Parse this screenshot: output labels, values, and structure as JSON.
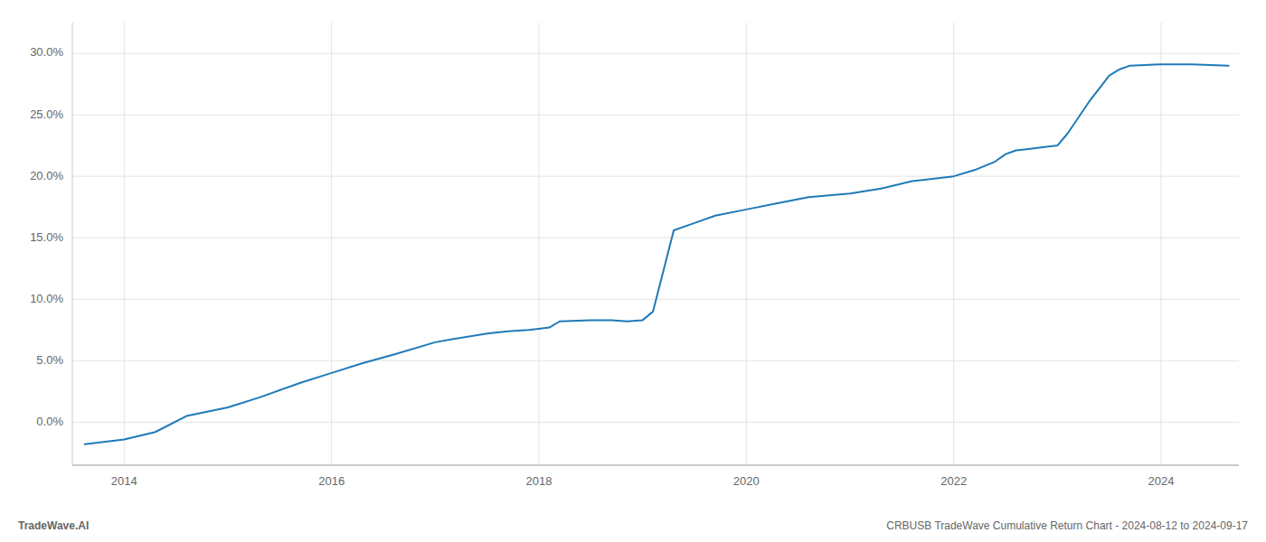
{
  "chart_data": {
    "type": "line",
    "x": [
      2013.62,
      2014.0,
      2014.3,
      2014.6,
      2015.0,
      2015.3,
      2015.7,
      2016.0,
      2016.3,
      2016.6,
      2017.0,
      2017.2,
      2017.5,
      2017.7,
      2017.9,
      2018.0,
      2018.1,
      2018.2,
      2018.5,
      2018.7,
      2018.85,
      2019.0,
      2019.1,
      2019.3,
      2019.5,
      2019.7,
      2020.0,
      2020.3,
      2020.6,
      2021.0,
      2021.3,
      2021.6,
      2022.0,
      2022.2,
      2022.4,
      2022.5,
      2022.6,
      2022.7,
      2023.0,
      2023.1,
      2023.3,
      2023.5,
      2023.6,
      2023.7,
      2024.0,
      2024.3,
      2024.65
    ],
    "values": [
      -0.018,
      -0.014,
      -0.008,
      0.005,
      0.012,
      0.02,
      0.032,
      0.04,
      0.048,
      0.055,
      0.065,
      0.068,
      0.072,
      0.074,
      0.075,
      0.076,
      0.077,
      0.082,
      0.083,
      0.083,
      0.082,
      0.083,
      0.09,
      0.156,
      0.162,
      0.168,
      0.173,
      0.178,
      0.183,
      0.186,
      0.19,
      0.196,
      0.2,
      0.205,
      0.212,
      0.218,
      0.221,
      0.222,
      0.225,
      0.235,
      0.26,
      0.282,
      0.287,
      0.29,
      0.291,
      0.291,
      0.29
    ],
    "color": "#1f7ab8",
    "xlim": [
      2013.5,
      2024.75
    ],
    "ylim": [
      -0.035,
      0.325
    ],
    "xticks": [
      2014,
      2016,
      2018,
      2020,
      2022,
      2024
    ],
    "yticks": [
      {
        "value": 0.0,
        "label": "0.0%"
      },
      {
        "value": 0.05,
        "label": "5.0%"
      },
      {
        "value": 0.1,
        "label": "10.0%"
      },
      {
        "value": 0.15,
        "label": "15.0%"
      },
      {
        "value": 0.2,
        "label": "20.0%"
      },
      {
        "value": 0.25,
        "label": "25.0%"
      },
      {
        "value": 0.3,
        "label": "30.0%"
      }
    ],
    "grid": true,
    "annotations": [
      "TradeWave.AI",
      "CRBUSB TradeWave Cumulative Return Chart - 2024-08-12 to 2024-09-17"
    ]
  }
}
